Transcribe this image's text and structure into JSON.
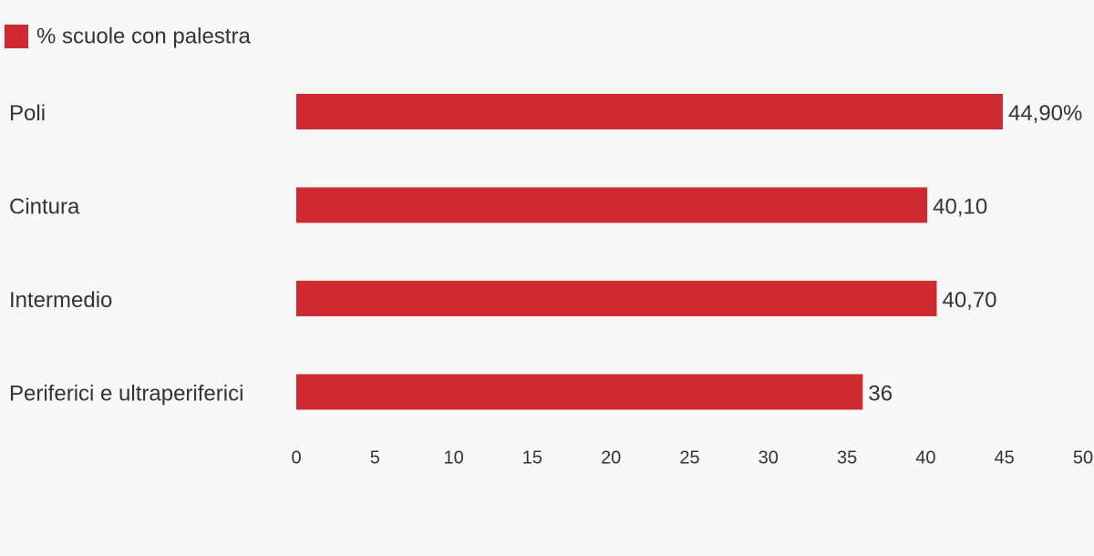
{
  "chart_data": {
    "type": "bar",
    "orientation": "horizontal",
    "categories": [
      "Poli",
      "Cintura",
      "Intermedio",
      "Periferici e ultraperiferici"
    ],
    "series": [
      {
        "name": "% scuole con palestra",
        "color": "#cf2a30",
        "values": [
          44.9,
          40.1,
          40.7,
          36
        ],
        "value_labels": [
          "44,90%",
          "40,10",
          "40,70",
          "36"
        ]
      }
    ],
    "xlim": [
      0,
      50
    ],
    "xticks": [
      0,
      5,
      10,
      15,
      20,
      25,
      30,
      35,
      40,
      45,
      50
    ],
    "grid": false,
    "legend": "top-left"
  }
}
